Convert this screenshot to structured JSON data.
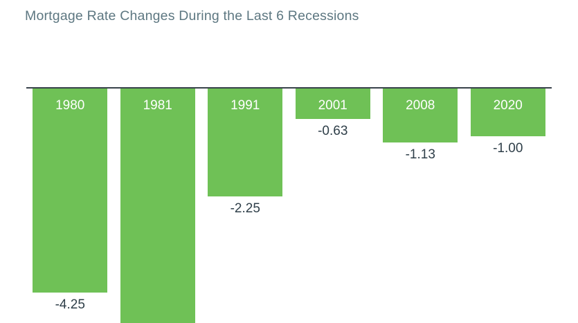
{
  "title": "Mortgage Rate Changes During the Last 6 Recessions",
  "colors": {
    "background": "#ffffff",
    "bar": "#6fc156",
    "axis_line": "#38424a",
    "title_text": "#5d7781",
    "year_text": "#ffffff",
    "value_text": "#2e3e48"
  },
  "chart_data": {
    "type": "bar",
    "orientation": "vertical",
    "baseline": 0,
    "grid": false,
    "legend": false,
    "title": "Mortgage Rate Changes During the Last 6 Recessions",
    "xlabel": "",
    "ylabel": "",
    "categories": [
      "1980",
      "1981",
      "1991",
      "2001",
      "2008",
      "2020"
    ],
    "values": [
      -4.25,
      null,
      -2.25,
      -0.63,
      -1.13,
      -1.0
    ],
    "value_labels": [
      "-4.25",
      "",
      "-2.25",
      "-0.63",
      "-1.13",
      "-1.00"
    ],
    "clipped": [
      false,
      true,
      false,
      false,
      false,
      false
    ],
    "notes": "All bars extend downward from a zero baseline; the 1981 bar is cut off by the bottom edge of the image and its value label is not visible."
  }
}
